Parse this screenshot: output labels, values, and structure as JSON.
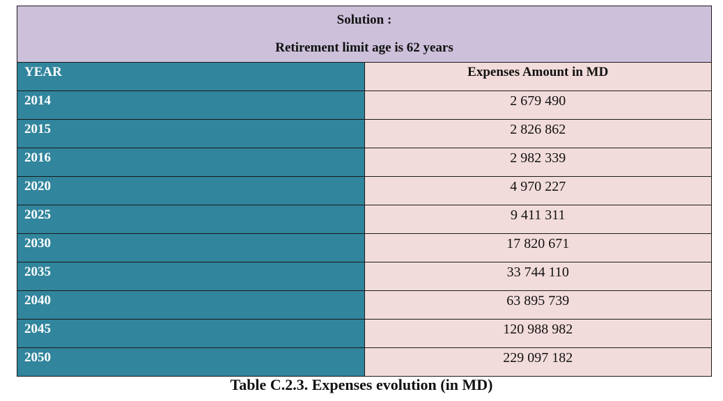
{
  "solution": {
    "title": "Solution :",
    "subtitle": "Retirement limit age is 62 years"
  },
  "header": {
    "year": "YEAR",
    "amount": "Expenses Amount in MD"
  },
  "rows": [
    {
      "year": "2014",
      "amount": "2 679 490"
    },
    {
      "year": "2015",
      "amount": "2 826 862"
    },
    {
      "year": "2016",
      "amount": "2 982 339"
    },
    {
      "year": "2020",
      "amount": "4 970 227"
    },
    {
      "year": "2025",
      "amount": "9 411 311"
    },
    {
      "year": "2030",
      "amount": "17 820 671"
    },
    {
      "year": "2035",
      "amount": "33 744 110"
    },
    {
      "year": "2040",
      "amount": "63 895 739"
    },
    {
      "year": "2045",
      "amount": "120 988 982"
    },
    {
      "year": "2050",
      "amount": "229 097 182"
    }
  ],
  "caption": "Table C.2.3. Expenses evolution (in MD)",
  "colors": {
    "solution_bg": "#ccc0da",
    "year_bg": "#31859c",
    "amount_bg": "#f2dcdb"
  }
}
